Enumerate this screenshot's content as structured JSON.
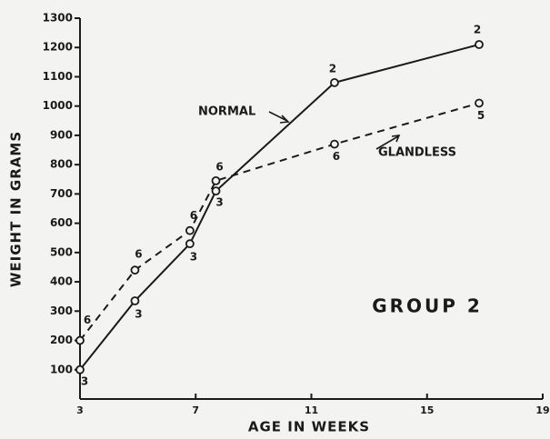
{
  "chart_data": {
    "type": "line",
    "x_label": "AGE IN WEEKS",
    "y_label": "WEIGHT IN GRAMS",
    "annotation": "GROUP 2",
    "xlim": [
      3,
      19
    ],
    "xticks": [
      3,
      7,
      11,
      15,
      19
    ],
    "ylim": [
      0,
      1300
    ],
    "yticks": [
      100,
      200,
      300,
      400,
      500,
      600,
      700,
      800,
      900,
      1000,
      1100,
      1200,
      1300
    ],
    "x": [
      3,
      4.9,
      6.8,
      7.7,
      11.8,
      16.8
    ],
    "series": [
      {
        "name": "NORMAL",
        "color": "#1a1a1a",
        "dash": false,
        "values": [
          100,
          335,
          530,
          710,
          1080,
          1210
        ],
        "point_labels": [
          "3",
          "3",
          "3",
          "3",
          "2",
          "2"
        ]
      },
      {
        "name": "GLANDLESS",
        "color": "#1a1a1a",
        "dash": true,
        "values": [
          200,
          440,
          575,
          745,
          870,
          1010
        ],
        "point_labels": [
          "6",
          "6",
          "6",
          "6",
          "6",
          "5"
        ]
      }
    ]
  }
}
